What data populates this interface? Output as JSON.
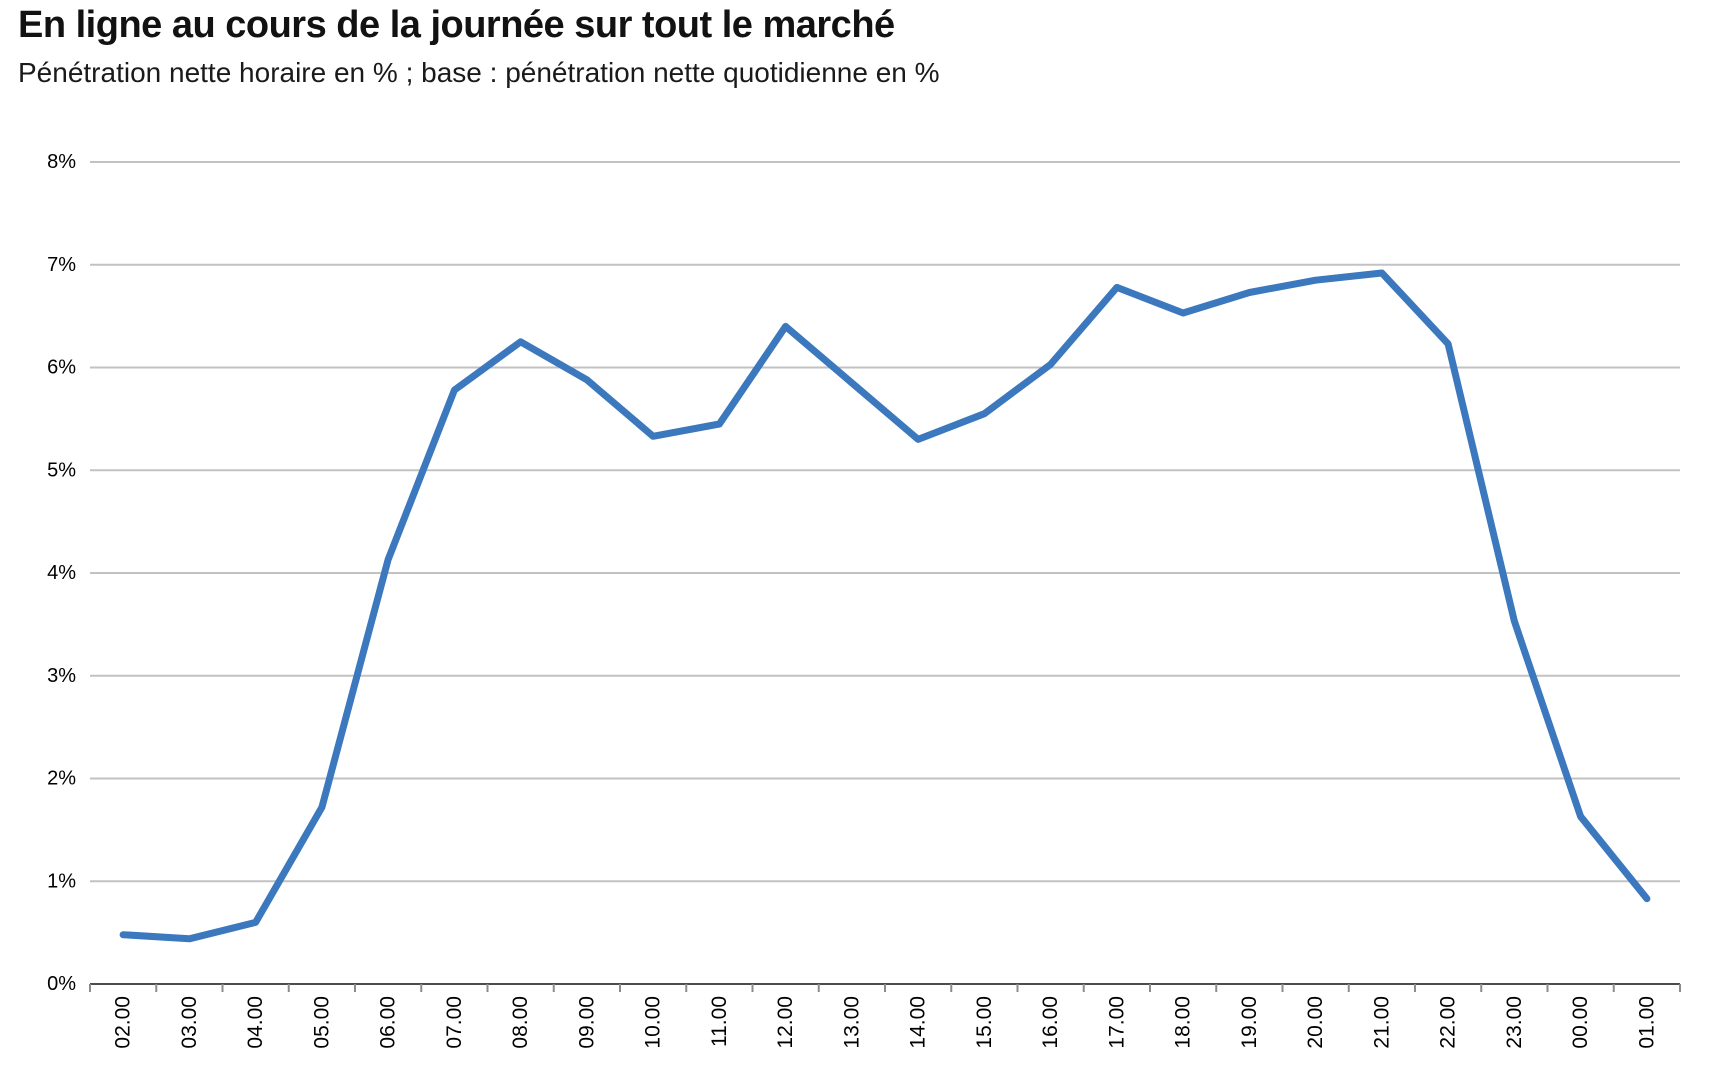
{
  "header": {
    "title": "En ligne au cours de la journée sur tout le marché",
    "subtitle": "Pénétration nette horaire en % ; base : pénétration nette quotidienne en %"
  },
  "chart_data": {
    "type": "line",
    "title": "En ligne au cours de la journée sur tout le marché",
    "subtitle": "Pénétration nette horaire en % ; base : pénétration nette quotidienne en %",
    "categories": [
      "02.00",
      "03.00",
      "04.00",
      "05.00",
      "06.00",
      "07.00",
      "08.00",
      "09.00",
      "10.00",
      "11.00",
      "12.00",
      "13.00",
      "14.00",
      "15.00",
      "16.00",
      "17.00",
      "18.00",
      "19.00",
      "20.00",
      "21.00",
      "22.00",
      "23.00",
      "00.00",
      "01.00"
    ],
    "series": [
      {
        "name": "Pénétration nette horaire en %",
        "values": [
          0.48,
          0.44,
          0.6,
          1.72,
          4.13,
          5.78,
          6.25,
          5.88,
          5.33,
          5.45,
          6.4,
          5.85,
          5.3,
          5.55,
          6.03,
          6.78,
          6.53,
          6.73,
          6.85,
          6.92,
          6.23,
          3.53,
          1.63,
          0.83
        ]
      }
    ],
    "xlabel": "",
    "ylabel": "",
    "ylim": [
      0,
      8
    ],
    "y_tick_step": 1,
    "y_ticks": [
      "0%",
      "1%",
      "2%",
      "3%",
      "4%",
      "5%",
      "6%",
      "7%",
      "8%"
    ],
    "grid": true,
    "legend_position": "none",
    "colors": {
      "line": "#3b78bd",
      "gridline": "#c2c2c2",
      "axis": "#4d4d4d",
      "tick": "#8c8c8c",
      "text": "#000000"
    }
  }
}
